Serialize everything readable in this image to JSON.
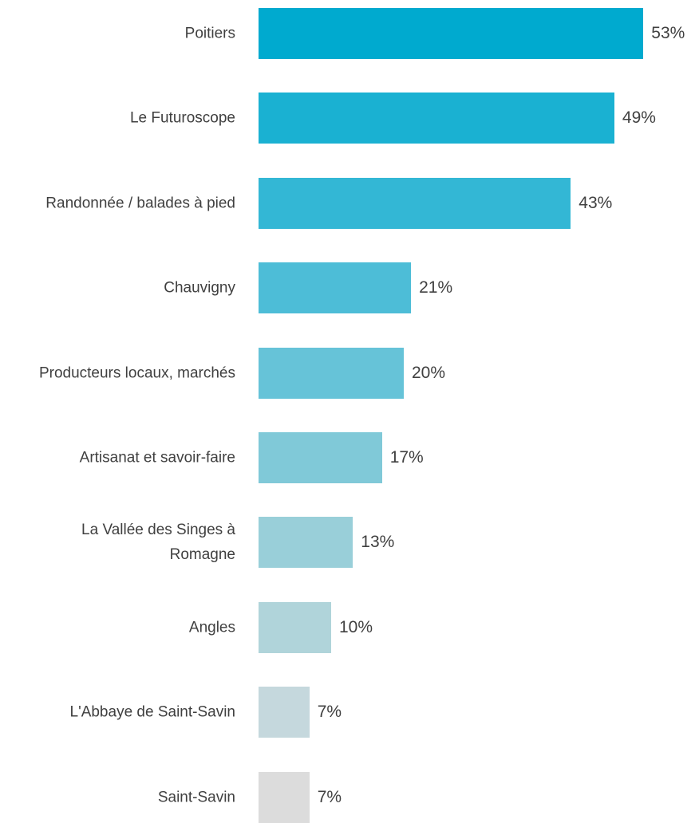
{
  "chart_data": {
    "type": "bar",
    "orientation": "horizontal",
    "categories": [
      "Poitiers",
      "Le Futuroscope",
      "Randonnée / balades à pied",
      "Chauvigny",
      "Producteurs locaux, marchés",
      "Artisanat et savoir-faire",
      "La Vallée des Singes à Romagne",
      "Angles",
      "L'Abbaye de Saint-Savin",
      "Saint-Savin"
    ],
    "values": [
      53,
      49,
      43,
      21,
      20,
      17,
      13,
      10,
      7,
      7
    ],
    "value_labels": [
      "53%",
      "49%",
      "43%",
      "21%",
      "20%",
      "17%",
      "13%",
      "10%",
      "7%",
      "7%"
    ],
    "colors": [
      "#00aacf",
      "#1ab1d2",
      "#33b7d5",
      "#4dbdd7",
      "#66c3d8",
      "#80c9d8",
      "#99cfd9",
      "#b0d4da",
      "#c5d8dd",
      "#dcdcdc"
    ]
  }
}
